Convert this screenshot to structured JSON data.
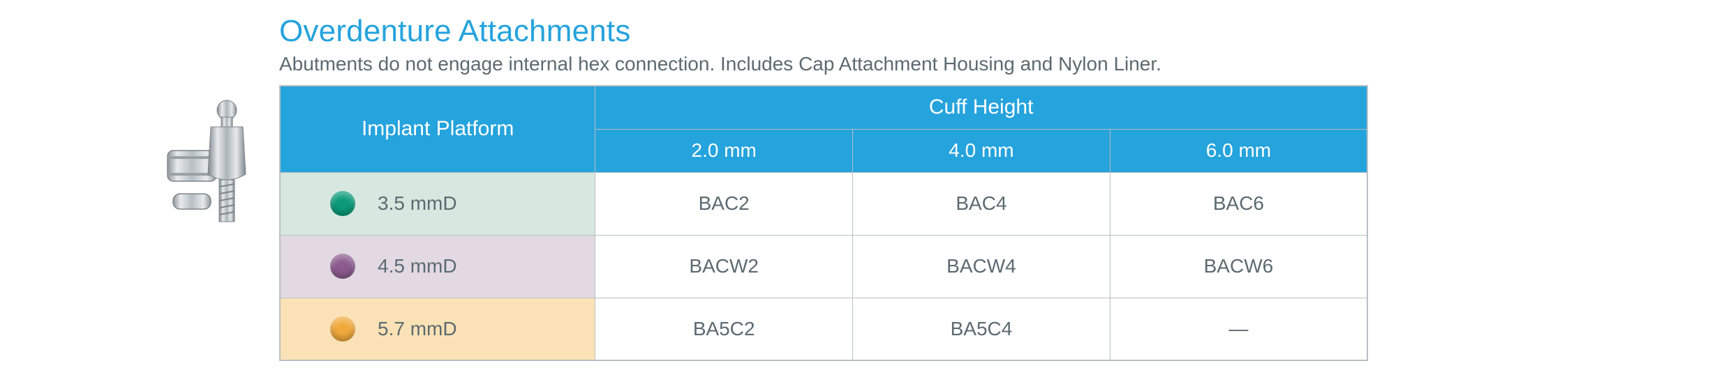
{
  "title": "Overdenture Attachments",
  "subtitle": "Abutments do not engage internal hex connection. Includes Cap Attachment Housing and Nylon Liner.",
  "headers": {
    "platform": "Implant Platform",
    "cuff": "Cuff Height",
    "sub": [
      "2.0 mm",
      "4.0 mm",
      "6.0 mm"
    ]
  },
  "rows": [
    {
      "platform": "3.5 mmD",
      "dot_color": "#0b9b7a",
      "bg": "#d6e8df",
      "values": [
        "BAC2",
        "BAC4",
        "BAC6"
      ]
    },
    {
      "platform": "4.5 mmD",
      "dot_color": "#8d5b8f",
      "bg": "#e2d9e3",
      "values": [
        "BACW2",
        "BACW4",
        "BACW6"
      ]
    },
    {
      "platform": "5.7 mmD",
      "dot_color": "#f2a93c",
      "bg": "#fbe2b6",
      "values": [
        "BA5C2",
        "BA5C4",
        "—"
      ]
    }
  ],
  "colors": {
    "accent": "#25a3dd",
    "border": "#b9c0c3",
    "text": "#5c6a70",
    "bg": "#ffffff"
  },
  "column_widths": {
    "platform_pct": 29,
    "value_pct": 23.67
  }
}
